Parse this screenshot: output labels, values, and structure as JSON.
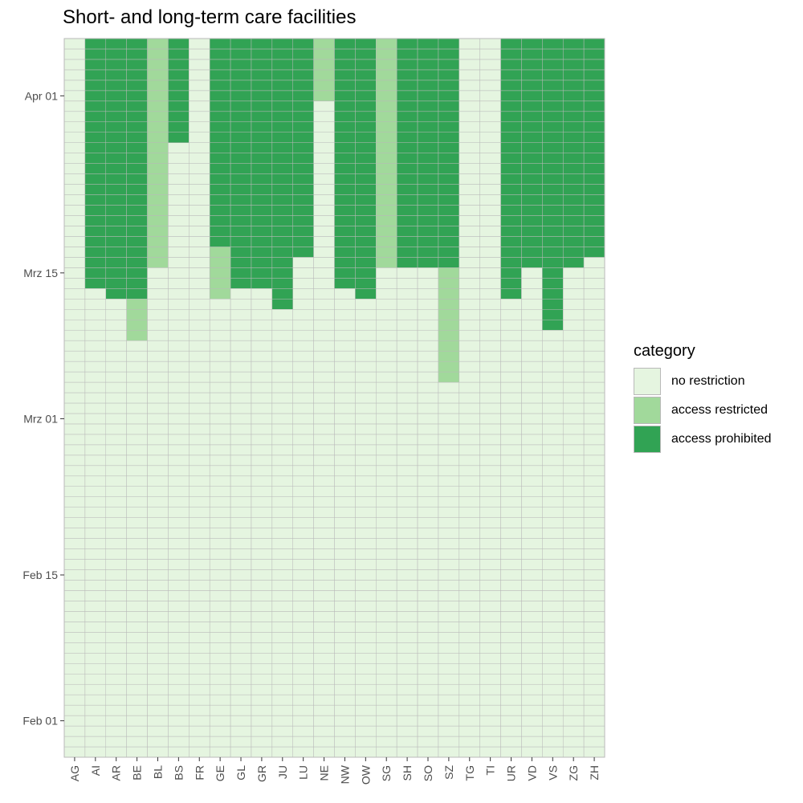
{
  "chart_data": {
    "type": "heatmap",
    "title": "Short- and long-term care facilities",
    "xlabel": "",
    "ylabel": "",
    "x": [
      "AG",
      "AI",
      "AR",
      "BE",
      "BL",
      "BS",
      "FR",
      "GE",
      "GL",
      "GR",
      "JU",
      "LU",
      "NE",
      "NW",
      "OW",
      "SG",
      "SH",
      "SO",
      "SZ",
      "TG",
      "TI",
      "UR",
      "VD",
      "VS",
      "ZG",
      "ZH"
    ],
    "y_range": [
      "2020-01-29",
      "2020-04-06"
    ],
    "y_ticks": [
      {
        "date": "2020-02-01",
        "label": "Feb 01"
      },
      {
        "date": "2020-02-15",
        "label": "Feb 15"
      },
      {
        "date": "2020-03-01",
        "label": "Mrz 01"
      },
      {
        "date": "2020-03-15",
        "label": "Mrz 15"
      },
      {
        "date": "2020-04-01",
        "label": "Apr 01"
      }
    ],
    "default_category": "no restriction",
    "legend": {
      "title": "category",
      "position": "right",
      "items": [
        {
          "label": "no restriction",
          "color": "#e5f5e0"
        },
        {
          "label": "access restricted",
          "color": "#a1d99b"
        },
        {
          "label": "access prohibited",
          "color": "#31a354"
        }
      ]
    },
    "grid": true,
    "category_periods": [
      {
        "canton": "AI",
        "category": "access prohibited",
        "from": "2020-03-14",
        "to": "2020-04-06"
      },
      {
        "canton": "AR",
        "category": "access prohibited",
        "from": "2020-03-13",
        "to": "2020-04-06"
      },
      {
        "canton": "BE",
        "category": "access restricted",
        "from": "2020-03-09",
        "to": "2020-03-12"
      },
      {
        "canton": "BE",
        "category": "access prohibited",
        "from": "2020-03-13",
        "to": "2020-04-06"
      },
      {
        "canton": "BL",
        "category": "access restricted",
        "from": "2020-03-16",
        "to": "2020-04-06"
      },
      {
        "canton": "BS",
        "category": "access prohibited",
        "from": "2020-03-28",
        "to": "2020-04-06"
      },
      {
        "canton": "GE",
        "category": "access restricted",
        "from": "2020-03-13",
        "to": "2020-03-17"
      },
      {
        "canton": "GE",
        "category": "access prohibited",
        "from": "2020-03-18",
        "to": "2020-04-06"
      },
      {
        "canton": "GL",
        "category": "access prohibited",
        "from": "2020-03-14",
        "to": "2020-04-06"
      },
      {
        "canton": "GR",
        "category": "access prohibited",
        "from": "2020-03-14",
        "to": "2020-04-06"
      },
      {
        "canton": "JU",
        "category": "access prohibited",
        "from": "2020-03-12",
        "to": "2020-04-06"
      },
      {
        "canton": "LU",
        "category": "access prohibited",
        "from": "2020-03-17",
        "to": "2020-04-06"
      },
      {
        "canton": "NE",
        "category": "access restricted",
        "from": "2020-04-01",
        "to": "2020-04-06"
      },
      {
        "canton": "NW",
        "category": "access prohibited",
        "from": "2020-03-14",
        "to": "2020-04-06"
      },
      {
        "canton": "OW",
        "category": "access prohibited",
        "from": "2020-03-13",
        "to": "2020-04-06"
      },
      {
        "canton": "SG",
        "category": "access restricted",
        "from": "2020-03-16",
        "to": "2020-04-06"
      },
      {
        "canton": "SH",
        "category": "access prohibited",
        "from": "2020-03-16",
        "to": "2020-04-06"
      },
      {
        "canton": "SO",
        "category": "access prohibited",
        "from": "2020-03-16",
        "to": "2020-04-06"
      },
      {
        "canton": "SZ",
        "category": "access restricted",
        "from": "2020-03-05",
        "to": "2020-03-15"
      },
      {
        "canton": "SZ",
        "category": "access prohibited",
        "from": "2020-03-16",
        "to": "2020-04-06"
      },
      {
        "canton": "UR",
        "category": "access prohibited",
        "from": "2020-03-13",
        "to": "2020-04-06"
      },
      {
        "canton": "VD",
        "category": "access prohibited",
        "from": "2020-03-16",
        "to": "2020-04-06"
      },
      {
        "canton": "VS",
        "category": "access prohibited",
        "from": "2020-03-10",
        "to": "2020-04-06"
      },
      {
        "canton": "ZG",
        "category": "access prohibited",
        "from": "2020-03-16",
        "to": "2020-04-06"
      },
      {
        "canton": "ZH",
        "category": "access prohibited",
        "from": "2020-03-17",
        "to": "2020-04-06"
      }
    ]
  }
}
